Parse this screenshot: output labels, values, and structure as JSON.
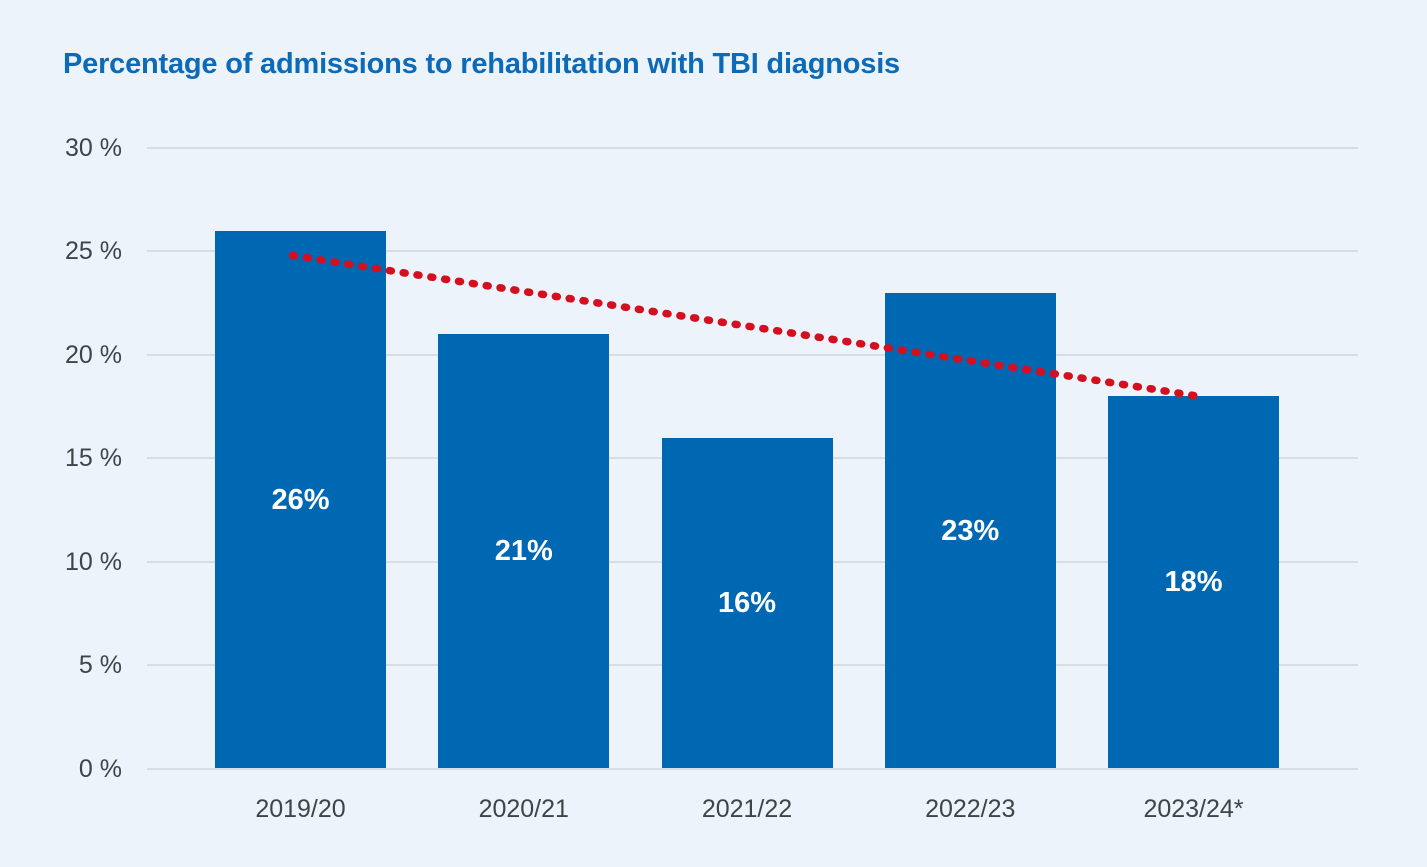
{
  "title": "Percentage of admissions to rehabilitation with TBI diagnosis",
  "chart_data": {
    "type": "bar",
    "title": "Percentage of admissions to rehabilitation with TBI diagnosis",
    "categories": [
      "2019/20",
      "2020/21",
      "2021/22",
      "2022/23",
      "2023/24*"
    ],
    "values": [
      26,
      21,
      16,
      23,
      18
    ],
    "bar_value_labels": [
      "26%",
      "21%",
      "16%",
      "23%",
      "18%"
    ],
    "xlabel": "",
    "ylabel": "",
    "ylim": [
      0,
      30
    ],
    "y_tick_values": [
      0,
      5,
      10,
      15,
      20,
      25,
      30
    ],
    "y_tick_labels": [
      "0 %",
      "5 %",
      "10 %",
      "15 %",
      "20 %",
      "25 %",
      "30 %"
    ],
    "grid": "horizontal",
    "legend": "none",
    "trendline": {
      "style": "dotted",
      "start_value": 24.8,
      "end_value": 18.0,
      "spans": "first bar center to last bar center"
    },
    "colors": {
      "background": "#ecf3fa",
      "bar": "#0067b2",
      "bar_label": "#ffffff",
      "title": "#0d6ab7",
      "axis_text": "#3f4447",
      "gridline": "#d9dce0",
      "trendline": "#d40f1f"
    }
  }
}
